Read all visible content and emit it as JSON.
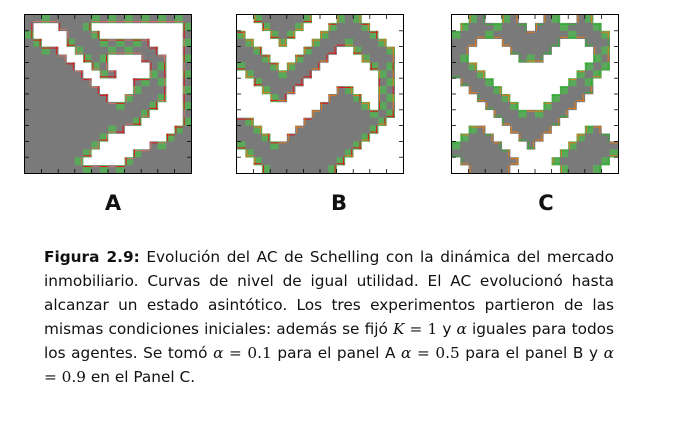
{
  "panels": [
    {
      "id": "a",
      "label": "A",
      "colors": {
        "occupied": "#7a7a7a",
        "edge": "#5aa85a",
        "contour": "#e01818",
        "contour2": "#d07060"
      }
    },
    {
      "id": "b",
      "label": "B",
      "colors": {
        "occupied": "#7a7a7a",
        "edge": "#5aa85a",
        "contour": "#e07a1a",
        "contour2": "#e01818"
      }
    },
    {
      "id": "c",
      "label": "C",
      "colors": {
        "occupied": "#7a7a7a",
        "edge": "#5aa85a",
        "contour": "#e07a1a",
        "contour2": "#2fb02f"
      }
    }
  ],
  "caption": {
    "figure_label": "Figura 2.9:",
    "text_1": "Evolución del AC de Schelling con la dinámica del mercado inmobiliario. Curvas de nivel de igual utilidad. El AC evolucionó hasta alcanzar un estado asintótico. Los tres experimentos partieron de las mismas condiciones iniciales: además se fijó",
    "k_symbol": "K",
    "k_value": "= 1",
    "text_2": "y",
    "alpha_symbol": "α",
    "text_3": "iguales para todos los agentes. Se tomó",
    "alpha_a": "= 0.1",
    "text_4": "para el panel A",
    "alpha_b": "= 0.5",
    "text_5": "para el panel B y",
    "alpha_c": "= 0.9",
    "text_6": "en el Panel C."
  }
}
